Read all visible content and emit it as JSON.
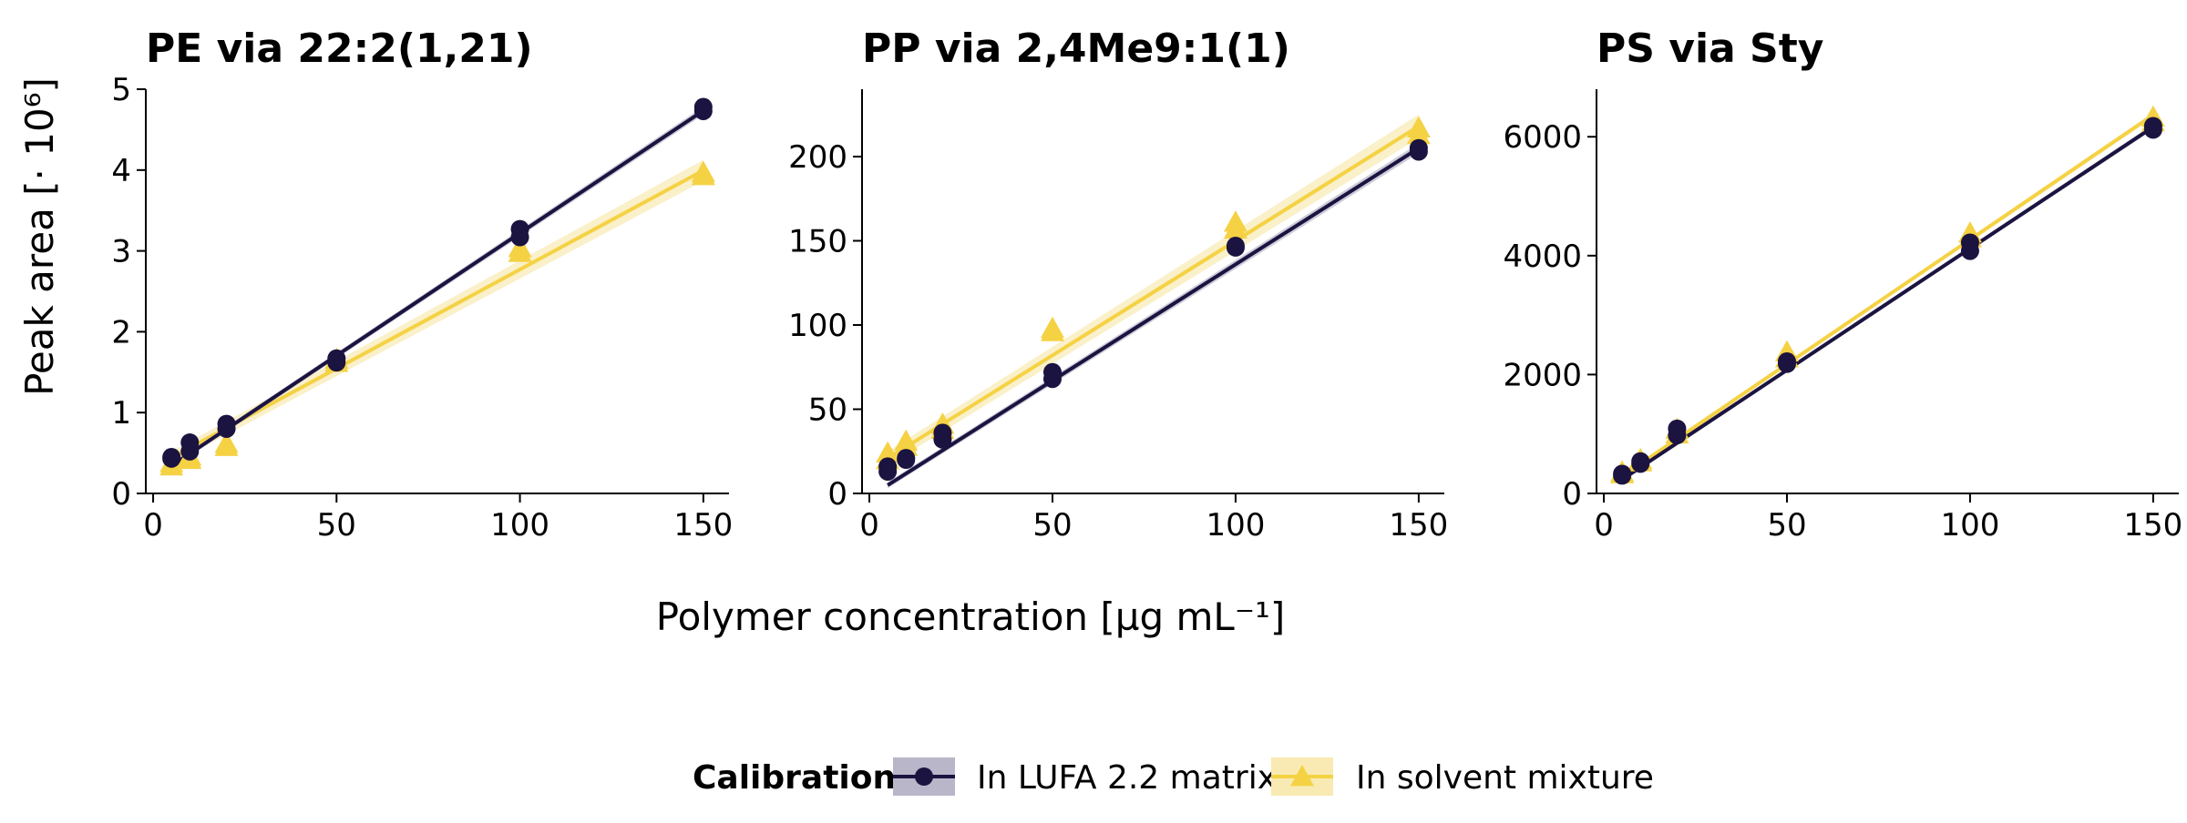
{
  "chart_data": {
    "type": "scatter",
    "xlabel": "Polymer concentration [µg mL⁻¹]",
    "ylabel": "Peak area [· 10⁶]",
    "legend": {
      "title": "Calibration",
      "placement": "bottom-center",
      "entries": [
        "In LUFA 2.2 matrix",
        "In solvent mixture"
      ]
    },
    "series_styles": [
      {
        "name": "In LUFA 2.2 matrix",
        "color": "#1b1340",
        "band_color": "#b9b6c9",
        "marker": "circle"
      },
      {
        "name": "In solvent mixture",
        "color": "#f5d244",
        "band_color": "#f8eab2",
        "marker": "triangle"
      }
    ],
    "panels": [
      {
        "title": "PE via 22:2(1,21)",
        "xlim": [
          -2,
          157
        ],
        "ylim": [
          0,
          5
        ],
        "xticks": [
          0,
          50,
          100,
          150
        ],
        "yticks": [
          0,
          1,
          2,
          3,
          4,
          5
        ],
        "series": [
          {
            "name": "In LUFA 2.2 matrix",
            "x": [
              5,
              5,
              10,
              10,
              20,
              20,
              50,
              50,
              100,
              100,
              150,
              150
            ],
            "y": [
              0.43,
              0.45,
              0.52,
              0.63,
              0.8,
              0.86,
              1.62,
              1.67,
              3.17,
              3.27,
              4.73,
              4.78
            ],
            "fit": {
              "slope": 0.0303,
              "intercept": 0.19,
              "band": 0.05
            }
          },
          {
            "name": "In solvent mixture",
            "x": [
              5,
              5,
              10,
              10,
              20,
              20,
              50,
              50,
              100,
              100,
              150,
              150
            ],
            "y": [
              0.34,
              0.38,
              0.42,
              0.46,
              0.58,
              0.62,
              1.62,
              1.66,
              2.98,
              3.04,
              3.93,
              3.97
            ],
            "fit": {
              "slope": 0.0245,
              "intercept": 0.32,
              "band": 0.13
            }
          }
        ]
      },
      {
        "title": "PP via 2,4Me9:1(1)",
        "xlim": [
          -2,
          157
        ],
        "ylim": [
          0,
          240
        ],
        "xticks": [
          0,
          50,
          100,
          150
        ],
        "yticks": [
          0,
          50,
          100,
          150,
          200
        ],
        "series": [
          {
            "name": "In LUFA 2.2 matrix",
            "x": [
              5,
              5,
              10,
              10,
              20,
              20,
              50,
              50,
              100,
              100,
              150,
              150
            ],
            "y": [
              13,
              16,
              20,
              21,
              32,
              36,
              68,
              72,
              146,
              147,
              203,
              205
            ],
            "fit": {
              "slope": 1.38,
              "intercept": -2,
              "band": 3
            }
          },
          {
            "name": "In solvent mixture",
            "x": [
              5,
              5,
              10,
              10,
              20,
              20,
              50,
              50,
              100,
              100,
              150,
              150
            ],
            "y": [
              20,
              24,
              28,
              31,
              38,
              41,
              96,
              98,
              157,
              161,
              213,
              217
            ],
            "fit": {
              "slope": 1.36,
              "intercept": 14,
              "band": 7
            }
          }
        ]
      },
      {
        "title": "PS via Sty",
        "xlim": [
          -2,
          157
        ],
        "ylim": [
          0,
          6800
        ],
        "xticks": [
          0,
          50,
          100,
          150
        ],
        "yticks": [
          0,
          2000,
          4000,
          6000
        ],
        "series": [
          {
            "name": "In LUFA 2.2 matrix",
            "x": [
              5,
              5,
              10,
              10,
              20,
              20,
              50,
              50,
              100,
              100,
              150,
              150
            ],
            "y": [
              300,
              330,
              500,
              540,
              980,
              1090,
              2180,
              2220,
              4080,
              4220,
              6120,
              6180
            ],
            "fit": {
              "slope": 40.9,
              "intercept": 30,
              "band": 45
            }
          },
          {
            "name": "In solvent mixture",
            "x": [
              5,
              5,
              10,
              10,
              20,
              20,
              50,
              50,
              100,
              100,
              150,
              150
            ],
            "y": [
              330,
              360,
              530,
              570,
              1000,
              1080,
              2280,
              2380,
              4300,
              4380,
              6250,
              6330
            ],
            "fit": {
              "slope": 41.9,
              "intercept": 80,
              "band": 45
            }
          }
        ]
      }
    ]
  }
}
